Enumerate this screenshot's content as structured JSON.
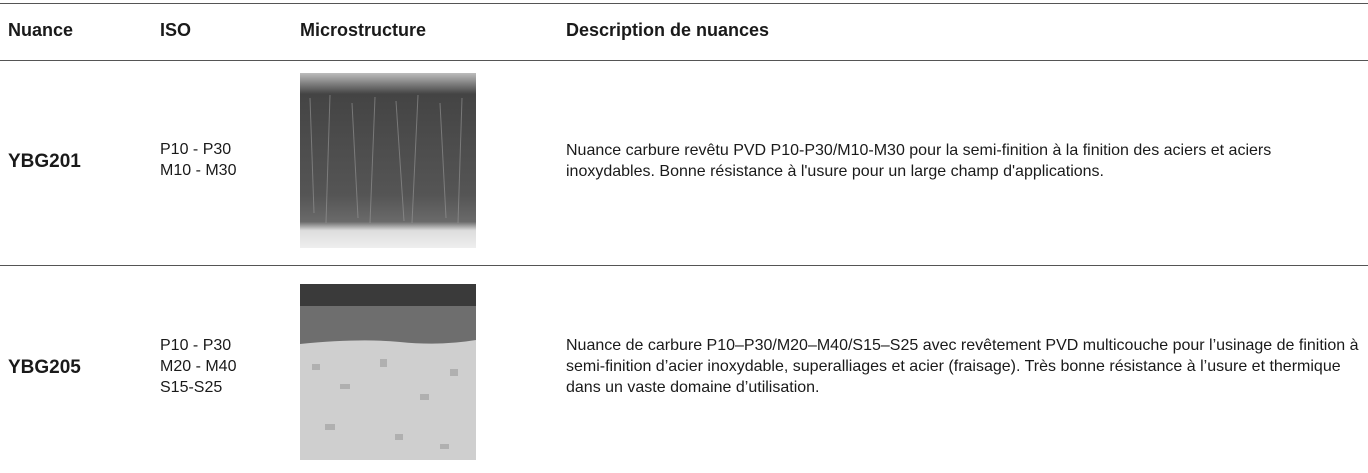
{
  "table": {
    "header": [
      "Nuance",
      "ISO",
      "Microstructure",
      "Description de nuances"
    ],
    "rows": [
      {
        "nuance": "YBG201",
        "iso": [
          "P10 - P30",
          "M10 - M30"
        ],
        "description": "Nuance carbure revêtu PVD P10-P30/M10-M30 pour la semi-finition à la finition des aciers et aciers inoxydables. Bonne résistance à l'usure pour un large champ d'applications."
      },
      {
        "nuance": "YBG205",
        "iso": [
          "P10 - P30",
          "M20 - M40",
          "S15-S25"
        ],
        "description": "Nuance de carbure P10–P30/M20–M40/S15–S25 avec revêtement PVD multicouche pour l’usinage de finition à semi-finition d’acier inoxydable, superalliages et acier (fraisage). Très bonne résistance à l’usure et thermique dans un vaste domaine d’utilisation."
      }
    ]
  }
}
